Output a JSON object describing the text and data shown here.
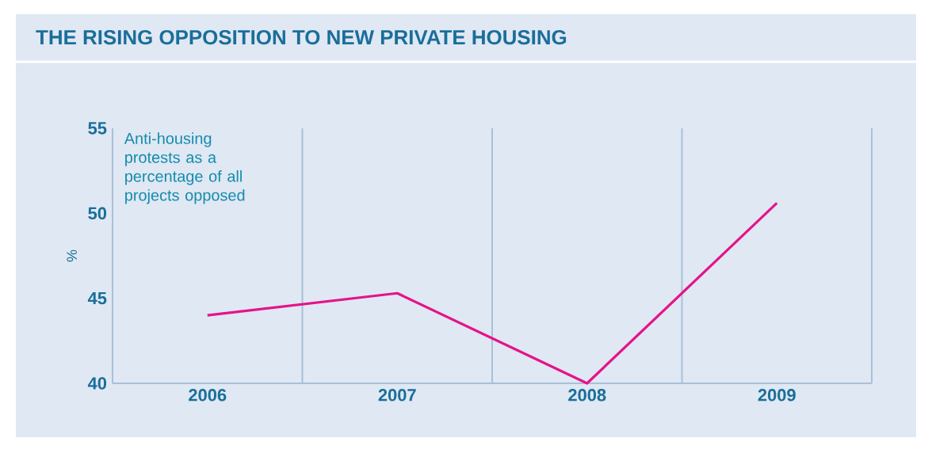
{
  "chart_data": {
    "type": "line",
    "title": "THE RISING OPPOSITION TO NEW PRIVATE HOUSING",
    "ylabel": "%",
    "annotations": [
      "Anti-housing protests as a percentage of all projects opposed"
    ],
    "categories": [
      "2006",
      "2007",
      "2008",
      "2009"
    ],
    "series": [
      {
        "color": "#e5138a",
        "values": [
          44.0,
          45.3,
          40.0,
          50.6
        ]
      }
    ],
    "ylim": [
      40,
      55
    ],
    "yticks": [
      40,
      45,
      50,
      55
    ],
    "grid": "x"
  }
}
